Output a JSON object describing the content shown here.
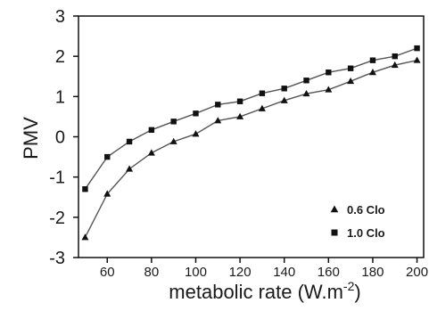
{
  "chart_data": {
    "type": "line",
    "title": "",
    "xlabel": "metabolic rate (W.m",
    "xlabel_superscript": "-2",
    "xlabel_suffix": ")",
    "ylabel": "PMV",
    "xlim": [
      47,
      203
    ],
    "ylim": [
      -3,
      3
    ],
    "x_ticks": [
      60,
      80,
      100,
      120,
      140,
      160,
      180,
      200
    ],
    "x_tick_labels": [
      "60",
      "80",
      "100",
      "120",
      "140",
      "160",
      "180",
      "200"
    ],
    "y_ticks": [
      -3,
      -2,
      -1,
      0,
      1,
      2,
      3
    ],
    "y_tick_labels": [
      "-3",
      "-2",
      "-1",
      "0",
      "1",
      "2",
      "3"
    ],
    "x": [
      50,
      60,
      70,
      80,
      90,
      100,
      110,
      120,
      130,
      140,
      150,
      160,
      170,
      180,
      190,
      200
    ],
    "grid": false,
    "legend": "bottom-right",
    "series": [
      {
        "name": "0.6 Clo",
        "marker": "triangle",
        "values": [
          -2.5,
          -1.42,
          -0.8,
          -0.4,
          -0.12,
          0.07,
          0.4,
          0.5,
          0.7,
          0.9,
          1.07,
          1.17,
          1.38,
          1.6,
          1.78,
          1.9
        ]
      },
      {
        "name": "1.0 Clo",
        "marker": "square",
        "values": [
          -1.3,
          -0.5,
          -0.12,
          0.17,
          0.38,
          0.58,
          0.8,
          0.88,
          1.08,
          1.2,
          1.4,
          1.6,
          1.7,
          1.9,
          2.0,
          2.2
        ]
      }
    ],
    "colors": {
      "line": "#555555",
      "marker": "#111111",
      "axis": "#111111",
      "text": "#1a1a1a"
    }
  }
}
